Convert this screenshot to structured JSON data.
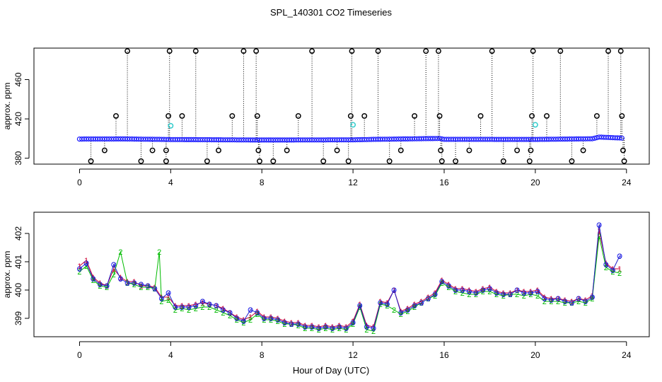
{
  "title": "SPL_140301  CO2 Timeseries",
  "xlabel": "Hour of Day (UTC)",
  "colors": {
    "frame": "#000000",
    "series_circle": "#2020ff",
    "series_flag": "#33cccc",
    "line_1": "#cc0033",
    "line_2": "#00bb00",
    "line_3": "#2020cc",
    "spike": "#000000"
  },
  "chart_data": [
    {
      "type": "scatter",
      "title": "",
      "xlabel": "",
      "ylabel": "approx. ppm",
      "xlim": [
        -2,
        25
      ],
      "ylim": [
        374,
        492
      ],
      "xticks": [
        "0",
        "4",
        "8",
        "12",
        "16",
        "20",
        "24"
      ],
      "yticks": [
        "380",
        "420",
        "460"
      ],
      "grid": false,
      "legend": "none",
      "series": [
        {
          "marker": "circle",
          "baseline": [
            [
              0,
              399.5
            ],
            [
              2,
              399.6
            ],
            [
              4,
              399.0
            ],
            [
              8,
              398.5
            ],
            [
              12,
              398.7
            ],
            [
              13,
              399.2
            ],
            [
              15.8,
              400.1
            ],
            [
              16,
              399.2
            ],
            [
              20,
              399.1
            ],
            [
              22.5,
              399.8
            ],
            [
              22.8,
              401.5
            ],
            [
              23.8,
              400.5
            ]
          ],
          "spikes": [
            [
              0.5,
              377
            ],
            [
              1.1,
              388
            ],
            [
              1.6,
              423
            ],
            [
              2.1,
              489
            ],
            [
              2.7,
              377
            ],
            [
              3.2,
              388
            ],
            [
              3.8,
              377
            ],
            [
              3.8,
              388
            ],
            [
              3.9,
              423
            ],
            [
              3.95,
              489
            ],
            [
              4.5,
              423
            ],
            [
              5.1,
              489
            ],
            [
              5.6,
              377
            ],
            [
              6.1,
              388
            ],
            [
              6.7,
              423
            ],
            [
              7.2,
              489
            ],
            [
              7.75,
              489
            ],
            [
              7.8,
              423
            ],
            [
              7.85,
              388
            ],
            [
              7.9,
              377
            ],
            [
              8.5,
              377
            ],
            [
              9.1,
              388
            ],
            [
              9.6,
              423
            ],
            [
              10.2,
              489
            ],
            [
              10.7,
              377
            ],
            [
              11.3,
              388
            ],
            [
              11.8,
              377
            ],
            [
              11.9,
              423
            ],
            [
              11.95,
              489
            ],
            [
              12.5,
              423
            ],
            [
              13.1,
              489
            ],
            [
              13.6,
              377
            ],
            [
              14.1,
              388
            ],
            [
              14.7,
              423
            ],
            [
              15.2,
              489
            ],
            [
              15.75,
              489
            ],
            [
              15.8,
              423
            ],
            [
              15.85,
              388
            ],
            [
              15.9,
              377
            ],
            [
              16.5,
              377
            ],
            [
              17.1,
              388
            ],
            [
              17.6,
              423
            ],
            [
              18.1,
              489
            ],
            [
              18.6,
              377
            ],
            [
              19.2,
              388
            ],
            [
              19.75,
              377
            ],
            [
              19.8,
              388
            ],
            [
              19.85,
              423
            ],
            [
              19.9,
              489
            ],
            [
              20.5,
              423
            ],
            [
              21.1,
              489
            ],
            [
              21.6,
              377
            ],
            [
              22.1,
              388
            ],
            [
              22.7,
              423
            ],
            [
              23.2,
              489
            ],
            [
              23.75,
              489
            ],
            [
              23.8,
              423
            ],
            [
              23.85,
              388
            ],
            [
              23.9,
              377
            ]
          ],
          "flagged": [
            [
              4.0,
              413
            ],
            [
              12.0,
              414
            ],
            [
              20.0,
              414
            ]
          ]
        }
      ]
    },
    {
      "type": "line",
      "title": "",
      "xlabel": "",
      "ylabel": "approx. ppm",
      "xlim": [
        -2,
        25
      ],
      "ylim": [
        398.35,
        402.75
      ],
      "xticks": [
        "0",
        "4",
        "8",
        "12",
        "16",
        "20",
        "24"
      ],
      "yticks": [
        "399",
        "400",
        "401",
        "402"
      ],
      "grid": false,
      "legend": "none",
      "series": [
        {
          "name": "1",
          "marker": "1",
          "x": [
            0.0,
            0.3,
            0.6,
            0.9,
            1.2,
            1.5,
            1.8,
            2.1,
            2.4,
            2.7,
            3.0,
            3.3,
            3.6,
            3.9,
            4.2,
            4.5,
            4.8,
            5.1,
            5.4,
            5.7,
            6.0,
            6.3,
            6.6,
            6.9,
            7.2,
            7.5,
            7.8,
            8.1,
            8.4,
            8.7,
            9.0,
            9.3,
            9.6,
            9.9,
            10.2,
            10.5,
            10.8,
            11.1,
            11.4,
            11.7,
            12.0,
            12.3,
            12.6,
            12.9,
            13.2,
            13.5,
            13.8,
            14.1,
            14.4,
            14.7,
            15.0,
            15.3,
            15.6,
            15.9,
            16.2,
            16.5,
            16.8,
            17.1,
            17.4,
            17.7,
            18.0,
            18.3,
            18.6,
            18.9,
            19.2,
            19.5,
            19.8,
            20.1,
            20.4,
            20.7,
            21.0,
            21.3,
            21.6,
            21.9,
            22.2,
            22.5,
            22.8,
            23.1,
            23.4,
            23.7
          ],
          "y": [
            400.85,
            401.05,
            400.45,
            400.25,
            400.15,
            400.75,
            400.45,
            400.3,
            400.3,
            400.15,
            400.15,
            400.1,
            399.75,
            399.75,
            399.45,
            399.45,
            399.45,
            399.5,
            399.55,
            399.5,
            399.45,
            399.35,
            399.2,
            399.05,
            398.95,
            399.05,
            399.25,
            399.05,
            399.05,
            399.0,
            398.9,
            398.85,
            398.85,
            398.75,
            398.75,
            398.7,
            398.75,
            398.7,
            398.75,
            398.7,
            398.9,
            399.5,
            398.75,
            398.7,
            399.6,
            399.55,
            400.0,
            399.25,
            399.35,
            399.5,
            399.6,
            399.75,
            399.9,
            400.35,
            400.2,
            400.05,
            400.05,
            400.0,
            399.95,
            400.05,
            400.1,
            399.95,
            399.9,
            399.9,
            400.0,
            399.95,
            399.95,
            400.0,
            399.75,
            399.7,
            399.7,
            399.65,
            399.6,
            399.7,
            399.65,
            399.8,
            402.1,
            400.95,
            400.75,
            400.75
          ]
        },
        {
          "name": "2",
          "marker": "2",
          "x": [
            0.0,
            0.3,
            0.6,
            0.9,
            1.2,
            1.5,
            1.8,
            2.1,
            2.4,
            2.7,
            3.0,
            3.3,
            3.5,
            3.6,
            3.9,
            4.2,
            4.5,
            4.8,
            5.1,
            5.4,
            5.7,
            6.0,
            6.3,
            6.6,
            6.9,
            7.2,
            7.5,
            7.8,
            8.1,
            8.4,
            8.7,
            9.0,
            9.3,
            9.6,
            9.9,
            10.2,
            10.5,
            10.8,
            11.1,
            11.4,
            11.7,
            12.0,
            12.3,
            12.6,
            12.9,
            13.2,
            13.5,
            13.8,
            14.1,
            14.4,
            14.7,
            15.0,
            15.3,
            15.6,
            15.9,
            16.2,
            16.5,
            16.8,
            17.1,
            17.4,
            17.7,
            18.0,
            18.3,
            18.6,
            18.9,
            19.2,
            19.5,
            19.8,
            20.1,
            20.4,
            20.7,
            21.0,
            21.3,
            21.6,
            21.9,
            22.2,
            22.5,
            22.8,
            23.1,
            23.4,
            23.7
          ],
          "y": [
            400.65,
            400.85,
            400.35,
            400.15,
            400.1,
            400.55,
            401.35,
            400.25,
            400.2,
            400.1,
            400.1,
            400.05,
            401.35,
            399.6,
            399.65,
            399.3,
            399.35,
            399.3,
            399.35,
            399.4,
            399.4,
            399.3,
            399.2,
            399.1,
            398.95,
            398.85,
            398.95,
            399.15,
            398.95,
            398.95,
            398.9,
            398.8,
            398.8,
            398.75,
            398.65,
            398.65,
            398.6,
            398.65,
            398.6,
            398.65,
            398.6,
            398.8,
            399.4,
            398.6,
            398.55,
            399.5,
            399.45,
            399.3,
            399.15,
            399.25,
            399.4,
            399.55,
            399.7,
            399.8,
            400.25,
            400.1,
            399.95,
            399.9,
            399.85,
            399.85,
            399.95,
            399.95,
            399.85,
            399.8,
            399.85,
            399.85,
            399.8,
            399.85,
            399.8,
            399.6,
            399.6,
            399.6,
            399.55,
            399.55,
            399.6,
            399.55,
            399.7,
            401.9,
            400.8,
            400.65,
            400.6
          ]
        },
        {
          "name": "3",
          "marker": "3",
          "x": [
            0.0,
            0.3,
            0.6,
            0.9,
            1.2,
            1.5,
            1.8,
            2.1,
            2.4,
            2.7,
            3.0,
            3.3,
            3.6,
            3.9,
            4.2,
            4.5,
            4.8,
            5.1,
            5.4,
            5.7,
            6.0,
            6.3,
            6.6,
            6.9,
            7.2,
            7.5,
            7.8,
            8.1,
            8.4,
            8.7,
            9.0,
            9.3,
            9.6,
            9.9,
            10.2,
            10.5,
            10.8,
            11.1,
            11.4,
            11.7,
            12.0,
            12.3,
            12.6,
            12.9,
            13.2,
            13.5,
            13.8,
            14.1,
            14.4,
            14.7,
            15.0,
            15.3,
            15.6,
            15.9,
            16.2,
            16.5,
            16.8,
            17.1,
            17.4,
            17.7,
            18.0,
            18.3,
            18.6,
            18.9,
            19.2,
            19.5,
            19.8,
            20.1,
            20.4,
            20.7,
            21.0,
            21.3,
            21.6,
            21.9,
            22.2,
            22.5,
            22.8,
            23.1,
            23.4,
            23.7
          ],
          "y": [
            400.75,
            400.95,
            400.4,
            400.2,
            400.15,
            400.9,
            400.4,
            400.25,
            400.25,
            400.2,
            400.15,
            400.05,
            399.7,
            399.9,
            399.4,
            399.4,
            399.4,
            399.45,
            399.6,
            399.5,
            399.45,
            399.3,
            399.2,
            399.0,
            398.9,
            399.3,
            399.2,
            399.0,
            399.0,
            398.95,
            398.85,
            398.8,
            398.8,
            398.7,
            398.7,
            398.65,
            398.7,
            398.65,
            398.7,
            398.65,
            398.85,
            399.45,
            398.7,
            398.65,
            399.55,
            399.5,
            400.0,
            399.2,
            399.3,
            399.45,
            399.55,
            399.7,
            399.85,
            400.3,
            400.15,
            400.0,
            400.0,
            399.95,
            399.9,
            400.0,
            400.05,
            399.9,
            399.85,
            399.85,
            400.0,
            399.9,
            399.9,
            399.95,
            399.7,
            399.65,
            399.7,
            399.6,
            399.55,
            399.7,
            399.6,
            399.75,
            402.3,
            400.9,
            400.7,
            401.2
          ]
        }
      ]
    }
  ]
}
